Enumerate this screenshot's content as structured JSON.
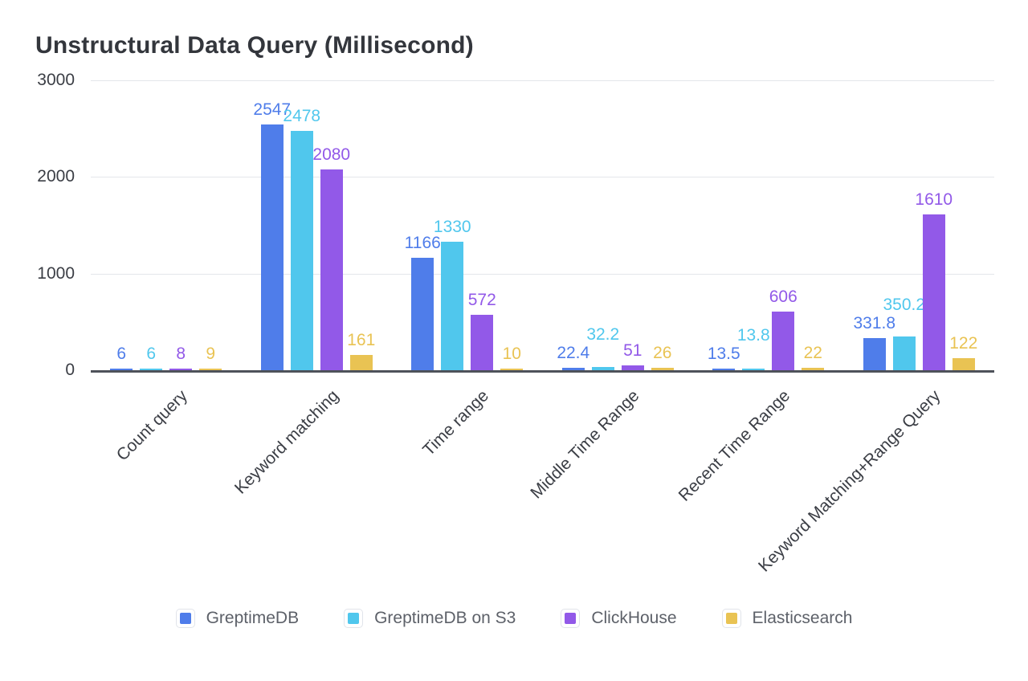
{
  "title": "Unstructural Data Query (Millisecond)",
  "chart_data": {
    "type": "bar",
    "title": "Unstructural Data Query (Millisecond)",
    "categories": [
      "Count query",
      "Keyword matching",
      "Time range",
      "Middle Time Range",
      "Recent Time Range",
      "Keyword Matching+Range Query"
    ],
    "series": [
      {
        "name": "GreptimeDB",
        "color": "#4f7dea",
        "values": [
          6,
          2547,
          1166,
          22.4,
          13.5,
          331.8
        ]
      },
      {
        "name": "GreptimeDB on S3",
        "color": "#50c7ed",
        "values": [
          6,
          2478,
          1330,
          32.2,
          13.8,
          350.2
        ]
      },
      {
        "name": "ClickHouse",
        "color": "#9259e8",
        "values": [
          8,
          2080,
          572,
          51,
          606,
          1610
        ]
      },
      {
        "name": "Elasticsearch",
        "color": "#e9c353",
        "values": [
          9,
          161,
          10,
          26,
          22,
          122
        ]
      }
    ],
    "ylim": [
      0,
      3000
    ],
    "yticks": [
      0,
      1000,
      2000,
      3000
    ],
    "xlabel": "",
    "ylabel": "",
    "grid": true,
    "value_labels": true,
    "legend_position": "bottom"
  },
  "style": {
    "background": "#ffffff",
    "title_color": "#33363c",
    "grid_line_color": "#e4e6eb",
    "axis_line_color": "#4e525a",
    "tick_text_color": "#3b3e45",
    "category_text_color": "#3b3e45",
    "legend_text_color": "#5d6169",
    "legend_swatch_border_color": "#e1e4ea"
  }
}
